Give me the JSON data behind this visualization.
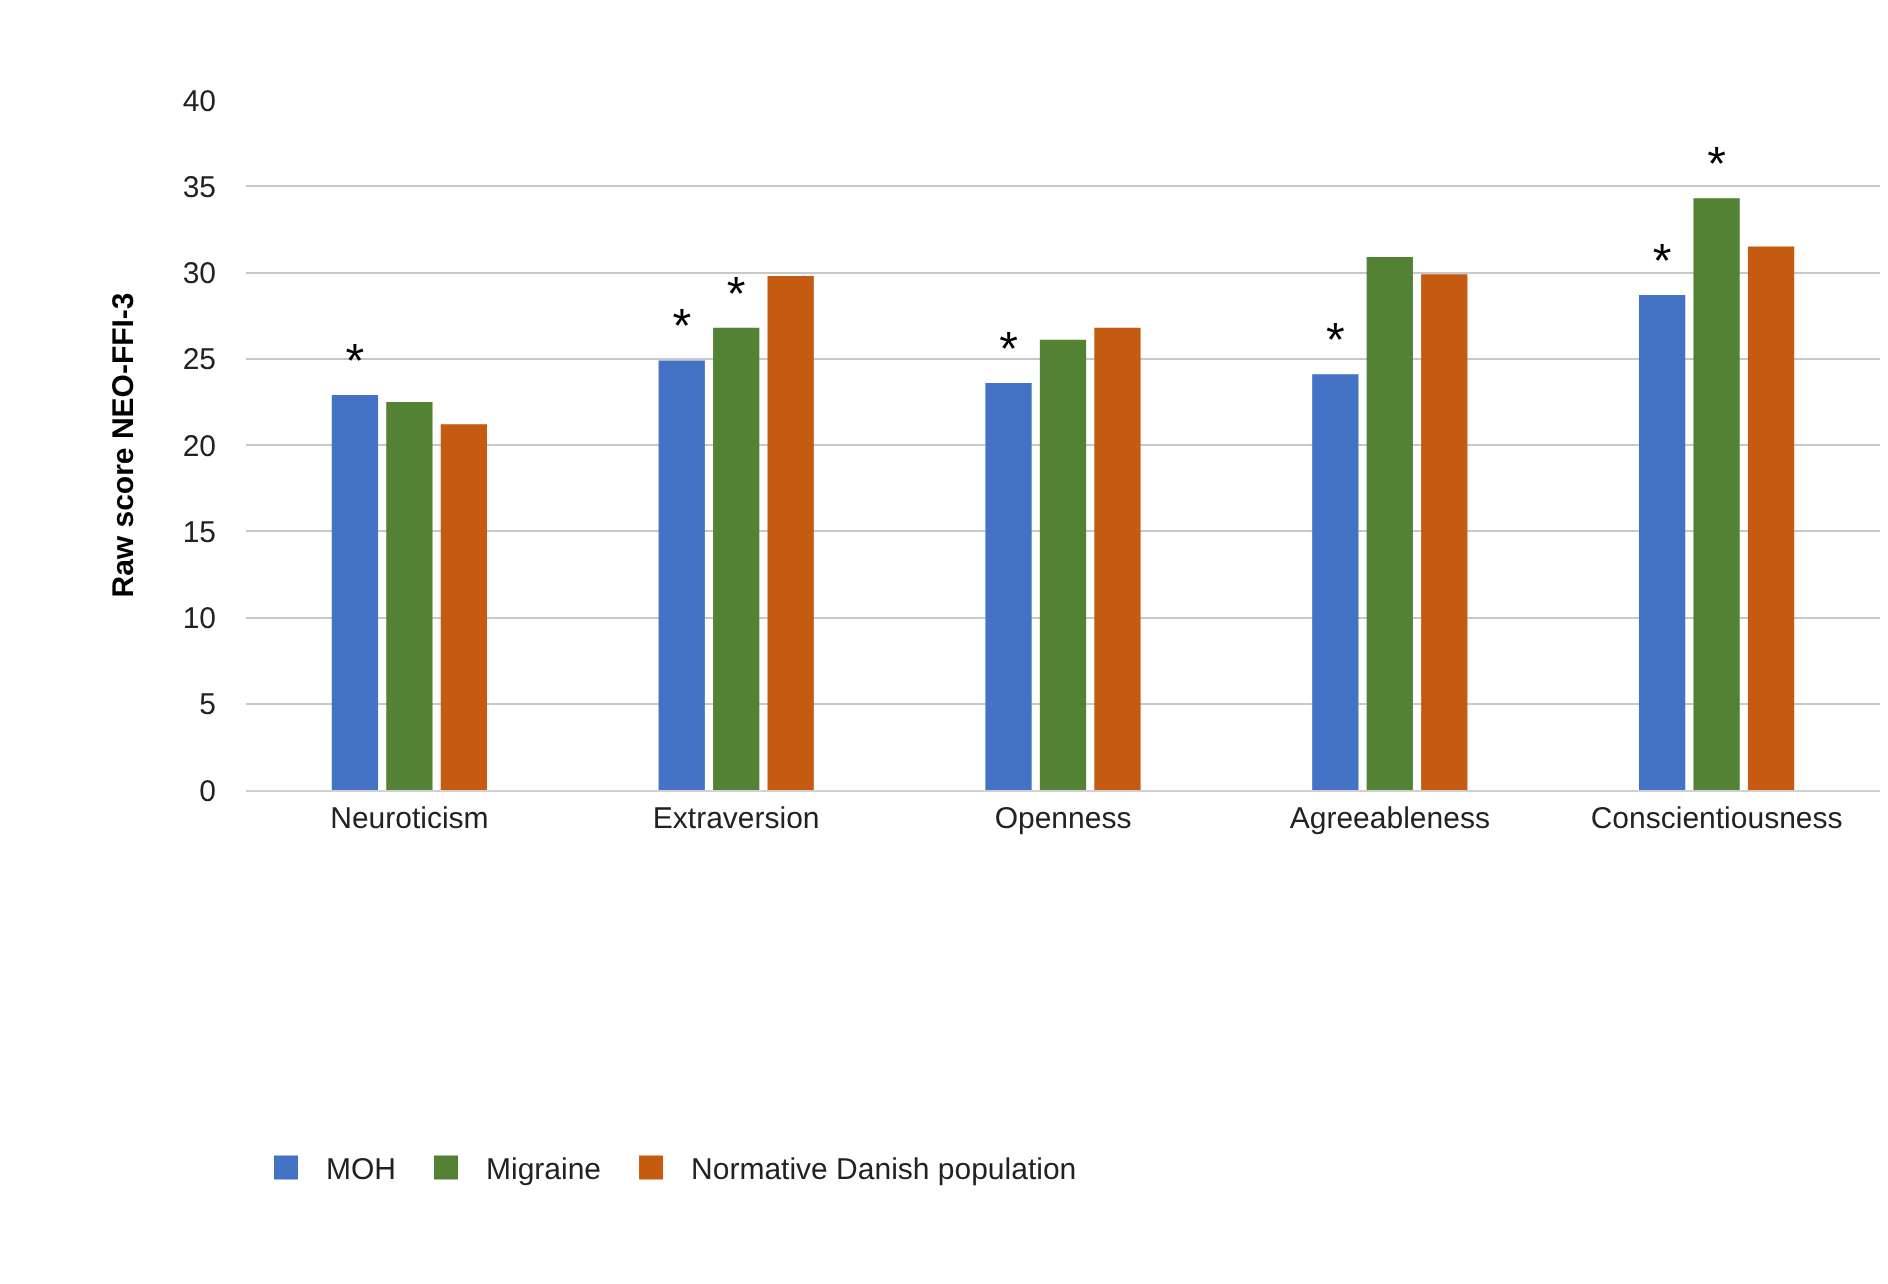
{
  "chart_data": {
    "type": "bar",
    "ylabel": "Raw score NEO-FFI-3",
    "categories": [
      "Neuroticism",
      "Extraversion",
      "Openness",
      "Agreeableness",
      "Conscientiousness"
    ],
    "series": [
      {
        "name": "MOH",
        "color": "#4472c4",
        "values": [
          22.9,
          24.9,
          23.6,
          24.1,
          28.7
        ],
        "value_labels": [
          "*",
          "*",
          "*",
          "*",
          "*"
        ]
      },
      {
        "name": "Migraine",
        "color": "#548235",
        "values": [
          22.5,
          26.8,
          26.1,
          30.9,
          34.3
        ],
        "value_labels": [
          null,
          "*",
          null,
          null,
          "*"
        ]
      },
      {
        "name": "Normative Danish population",
        "color": "#c55a11",
        "values": [
          21.2,
          29.8,
          26.8,
          29.9,
          31.5
        ]
      }
    ],
    "ylim": [
      0,
      40
    ],
    "yticks": [
      0,
      5,
      10,
      15,
      20,
      25,
      30,
      35,
      40
    ],
    "grid": "y",
    "legend": "bottom"
  }
}
